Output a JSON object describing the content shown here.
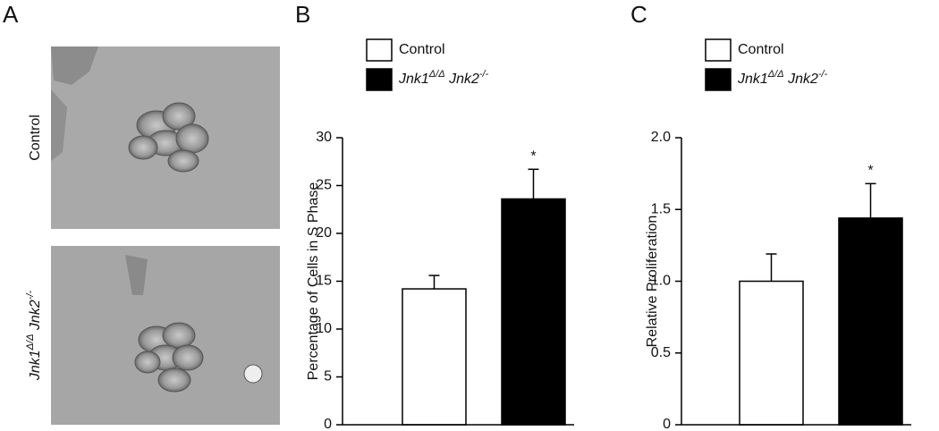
{
  "panels": [
    "A",
    "B",
    "C"
  ],
  "micrographs": {
    "rows": [
      [
        "Control"
      ],
      [
        "Jnk1",
        "Δ/Δ",
        " Jnk2",
        "-/-"
      ]
    ]
  },
  "chart_data": [
    {
      "type": "bar",
      "ylabel": "Percentage of Cells in S Phase",
      "annotation": "*",
      "series": [
        {
          "name": [
            "Control"
          ],
          "color": "#ffffff",
          "values": [
            14.2
          ],
          "errors": [
            1.4
          ]
        },
        {
          "name": [
            "Jnk1",
            "Δ/Δ",
            " Jnk2",
            "-/-"
          ],
          "color": "#000000",
          "values": [
            23.6
          ],
          "errors": [
            3.1
          ]
        }
      ],
      "ylim": [
        0,
        30
      ],
      "yticks": [
        0,
        5,
        10,
        15,
        20,
        25,
        30
      ]
    },
    {
      "type": "bar",
      "ylabel": "Relative Proliferation",
      "annotation": "*",
      "series": [
        {
          "name": [
            "Control"
          ],
          "color": "#ffffff",
          "values": [
            1.0
          ],
          "errors": [
            0.19
          ]
        },
        {
          "name": [
            "Jnk1",
            "Δ/Δ",
            " Jnk2",
            "-/-"
          ],
          "color": "#000000",
          "values": [
            1.44
          ],
          "errors": [
            0.24
          ]
        }
      ],
      "ylim": [
        0,
        2
      ],
      "yticks": [
        0,
        0.5,
        {
          "value": 1,
          "label": "1.0"
        },
        1.5,
        {
          "value": 2,
          "label": "2.0"
        }
      ]
    }
  ]
}
